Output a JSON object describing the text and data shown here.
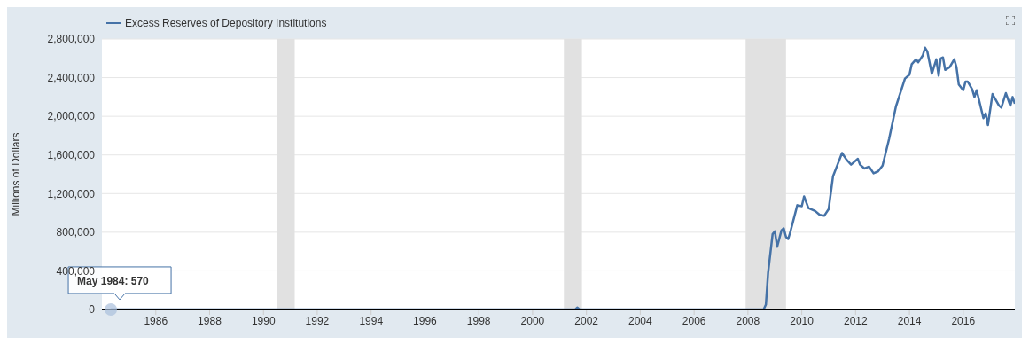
{
  "chart_data": {
    "type": "line",
    "ylabel": "Millions of Dollars",
    "legend": "top left",
    "grid": "y",
    "marker": "none",
    "line_style": "solid",
    "xlim": [
      "1984-01",
      "2017-12"
    ],
    "xticks": [
      "1986",
      "1988",
      "1990",
      "1992",
      "1994",
      "1996",
      "1998",
      "2000",
      "2002",
      "2004",
      "2006",
      "2008",
      "2010",
      "2012",
      "2014",
      "2016"
    ],
    "ylim": [
      0,
      2800000
    ],
    "yticks": [
      {
        "value": 0,
        "label": "0"
      },
      {
        "value": 400000,
        "label": "400,000"
      },
      {
        "value": 800000,
        "label": "800,000"
      },
      {
        "value": 1200000,
        "label": "1,200,000"
      },
      {
        "value": 1600000,
        "label": "1,600,000"
      },
      {
        "value": 2000000,
        "label": "2,000,000"
      },
      {
        "value": 2400000,
        "label": "2,400,000"
      },
      {
        "value": 2800000,
        "label": "2,800,000"
      }
    ],
    "bands": [
      {
        "axis": "x",
        "from": "1990-07",
        "to": "1991-03",
        "color": "#e1e1e1"
      },
      {
        "axis": "x",
        "from": "2001-03",
        "to": "2001-11",
        "color": "#e1e1e1"
      },
      {
        "axis": "x",
        "from": "2007-12",
        "to": "2009-06",
        "color": "#e1e1e1"
      }
    ],
    "annotations": [
      {
        "text": "May 1984: 570",
        "x": "1984-05",
        "y": 570
      }
    ],
    "x": [
      "1984-05",
      "1990-01",
      "2001-08",
      "2001-09",
      "2001-10",
      "2008-08",
      "2008-09",
      "2008-10",
      "2008-12",
      "2009-01",
      "2009-02",
      "2009-04",
      "2009-05",
      "2009-06",
      "2009-07",
      "2009-08",
      "2009-11",
      "2010-01",
      "2010-02",
      "2010-04",
      "2010-07",
      "2010-09",
      "2010-11",
      "2011-01",
      "2011-03",
      "2011-05",
      "2011-07",
      "2011-09",
      "2011-11",
      "2012-02",
      "2012-03",
      "2012-05",
      "2012-07",
      "2012-09",
      "2012-11",
      "2013-01",
      "2013-04",
      "2013-07",
      "2013-11",
      "2014-01",
      "2014-02",
      "2014-04",
      "2014-05",
      "2014-07",
      "2014-08",
      "2014-09",
      "2014-11",
      "2015-01",
      "2015-02",
      "2015-03",
      "2015-04",
      "2015-05",
      "2015-07",
      "2015-09",
      "2015-10",
      "2015-11",
      "2016-01",
      "2016-02",
      "2016-03",
      "2016-05",
      "2016-06",
      "2016-07",
      "2016-10",
      "2016-11",
      "2016-12",
      "2017-02",
      "2017-05",
      "2017-06",
      "2017-08",
      "2017-10",
      "2017-11",
      "2017-12"
    ],
    "series": [
      {
        "name": "Excess Reserves of Depository Institutions",
        "color": "#4572a7",
        "values": [
          570,
          0,
          0,
          20000,
          0,
          0,
          50000,
          380000,
          780000,
          810000,
          650000,
          820000,
          840000,
          750000,
          730000,
          810000,
          1080000,
          1070000,
          1170000,
          1050000,
          1020000,
          980000,
          970000,
          1040000,
          1380000,
          1500000,
          1620000,
          1550000,
          1500000,
          1560000,
          1500000,
          1460000,
          1480000,
          1410000,
          1430000,
          1490000,
          1770000,
          2100000,
          2390000,
          2430000,
          2540000,
          2590000,
          2560000,
          2630000,
          2710000,
          2670000,
          2440000,
          2590000,
          2420000,
          2600000,
          2610000,
          2480000,
          2510000,
          2590000,
          2510000,
          2330000,
          2270000,
          2360000,
          2360000,
          2280000,
          2200000,
          2270000,
          1980000,
          2030000,
          1910000,
          2230000,
          2110000,
          2090000,
          2240000,
          2110000,
          2200000,
          2130000
        ]
      }
    ]
  }
}
